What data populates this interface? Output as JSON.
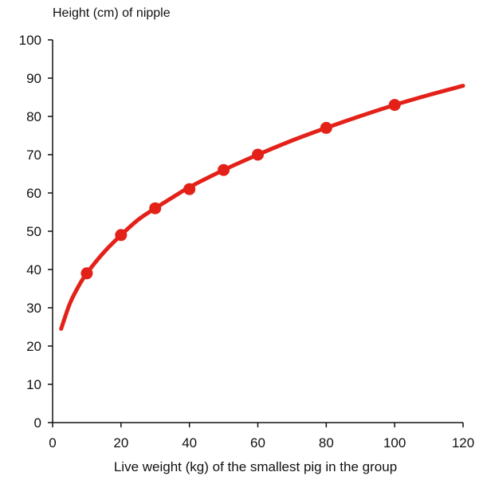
{
  "chart_data": {
    "type": "line",
    "title": "",
    "ylabel": "Height (cm) of nipple",
    "xlabel": "Live weight (kg) of the smallest pig in the group",
    "xlim": [
      0,
      120
    ],
    "ylim": [
      0,
      100
    ],
    "xticks": [
      0,
      20,
      40,
      60,
      80,
      100,
      120
    ],
    "yticks": [
      0,
      10,
      20,
      30,
      40,
      50,
      60,
      70,
      80,
      90,
      100
    ],
    "grid": false,
    "legend": "none",
    "series": [
      {
        "points_x": [
          10,
          20,
          30,
          40,
          50,
          60,
          80,
          100
        ],
        "points_y": [
          39,
          49,
          56,
          61,
          66,
          70,
          77,
          83
        ],
        "curve_x": [
          2.5,
          5,
          7.5,
          10,
          15,
          20,
          25,
          30,
          35,
          40,
          50,
          60,
          70,
          80,
          90,
          100,
          110,
          120
        ],
        "curve_y": [
          24.5,
          31,
          35.5,
          39,
          44.5,
          49,
          53,
          56,
          58.8,
          61.5,
          66,
          70,
          73.7,
          77,
          80.1,
          83,
          85.6,
          88
        ],
        "color": "#e32119"
      }
    ]
  }
}
